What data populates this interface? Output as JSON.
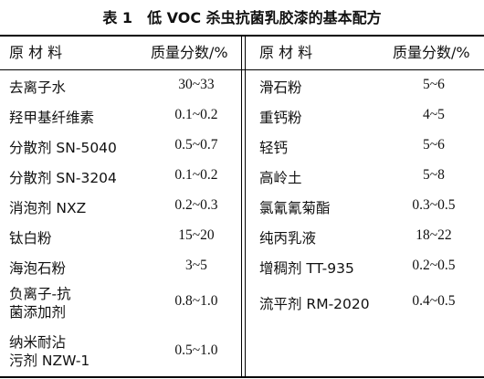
{
  "table": {
    "title_label": "表 1",
    "title_text": "低 VOC 杀虫抗菌乳胶漆的基本配方",
    "headers": {
      "left_material": "原 材 料",
      "left_fraction": "质量分数/%",
      "right_material": "原 材 料",
      "right_fraction": "质量分数/%"
    },
    "left_rows": [
      {
        "material": "去离子水",
        "fraction": "30~33"
      },
      {
        "material": "羟甲基纤维素",
        "fraction": "0.1~0.2"
      },
      {
        "material": "分散剂 SN-5040",
        "fraction": "0.5~0.7"
      },
      {
        "material": "分散剂 SN-3204",
        "fraction": "0.1~0.2"
      },
      {
        "material": "消泡剂 NXZ",
        "fraction": "0.2~0.3"
      },
      {
        "material": "钛白粉",
        "fraction": "15~20"
      },
      {
        "material": "海泡石粉",
        "fraction": "3~5"
      },
      {
        "material_line1": "负离子-抗",
        "material_line2": "菌添加剂",
        "fraction": "0.8~1.0"
      },
      {
        "material_line1": "纳米耐沾",
        "material_line2": "污剂 NZW-1",
        "fraction": "0.5~1.0"
      }
    ],
    "right_rows": [
      {
        "material": "滑石粉",
        "fraction": "5~6"
      },
      {
        "material": "重钙粉",
        "fraction": "4~5"
      },
      {
        "material": "轻钙",
        "fraction": "5~6"
      },
      {
        "material": "高岭土",
        "fraction": "5~8"
      },
      {
        "material": "氯氰氰菊酯",
        "fraction": "0.3~0.5"
      },
      {
        "material": "纯丙乳液",
        "fraction": "18~22"
      },
      {
        "material": "增稠剂 TT-935",
        "fraction": "0.2~0.5"
      },
      {
        "material": "流平剂 RM-2020",
        "fraction": "0.4~0.5"
      }
    ]
  }
}
